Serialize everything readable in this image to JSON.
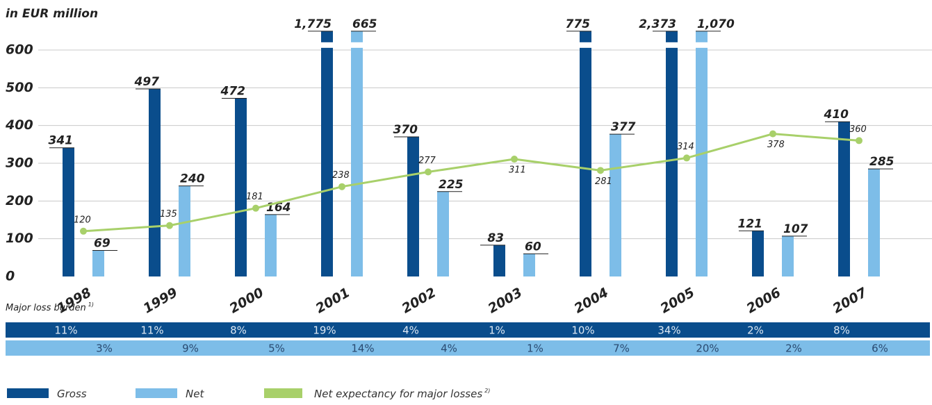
{
  "chart_data": {
    "type": "bar",
    "title": "in EUR million",
    "categories": [
      "1998",
      "1999",
      "2000",
      "2001",
      "2002",
      "2003",
      "2004",
      "2005",
      "2006",
      "2007"
    ],
    "series": [
      {
        "name": "Gross",
        "color": "#0a4d8c",
        "values": [
          341,
          497,
          472,
          1775,
          370,
          83,
          775,
          2373,
          121,
          410
        ],
        "value_labels": [
          "341",
          "497",
          "472",
          "1,775",
          "370",
          "83",
          "775",
          "2,373",
          "121",
          "410"
        ]
      },
      {
        "name": "Net",
        "color": "#7dbde8",
        "values": [
          69,
          240,
          164,
          665,
          225,
          60,
          377,
          1070,
          107,
          285
        ],
        "value_labels": [
          "69",
          "240",
          "164",
          "665",
          "225",
          "60",
          "377",
          "1,070",
          "107",
          "285"
        ]
      },
      {
        "name": "Net expectancy for major losses",
        "note": "2)",
        "color": "#a8d06a",
        "type": "line",
        "values": [
          120,
          135,
          181,
          238,
          277,
          311,
          281,
          314,
          378,
          360
        ]
      }
    ],
    "ylim": [
      0,
      650
    ],
    "yticks": [
      0,
      100,
      200,
      300,
      400,
      500,
      600
    ],
    "grid": true,
    "loss_burden": {
      "label": "Major loss burden",
      "note": "1)",
      "gross": [
        "11%",
        "11%",
        "8%",
        "19%",
        "4%",
        "1%",
        "10%",
        "34%",
        "2%",
        "8%"
      ],
      "net": [
        "3%",
        "9%",
        "5%",
        "14%",
        "4%",
        "1%",
        "7%",
        "20%",
        "2%",
        "6%"
      ]
    }
  }
}
